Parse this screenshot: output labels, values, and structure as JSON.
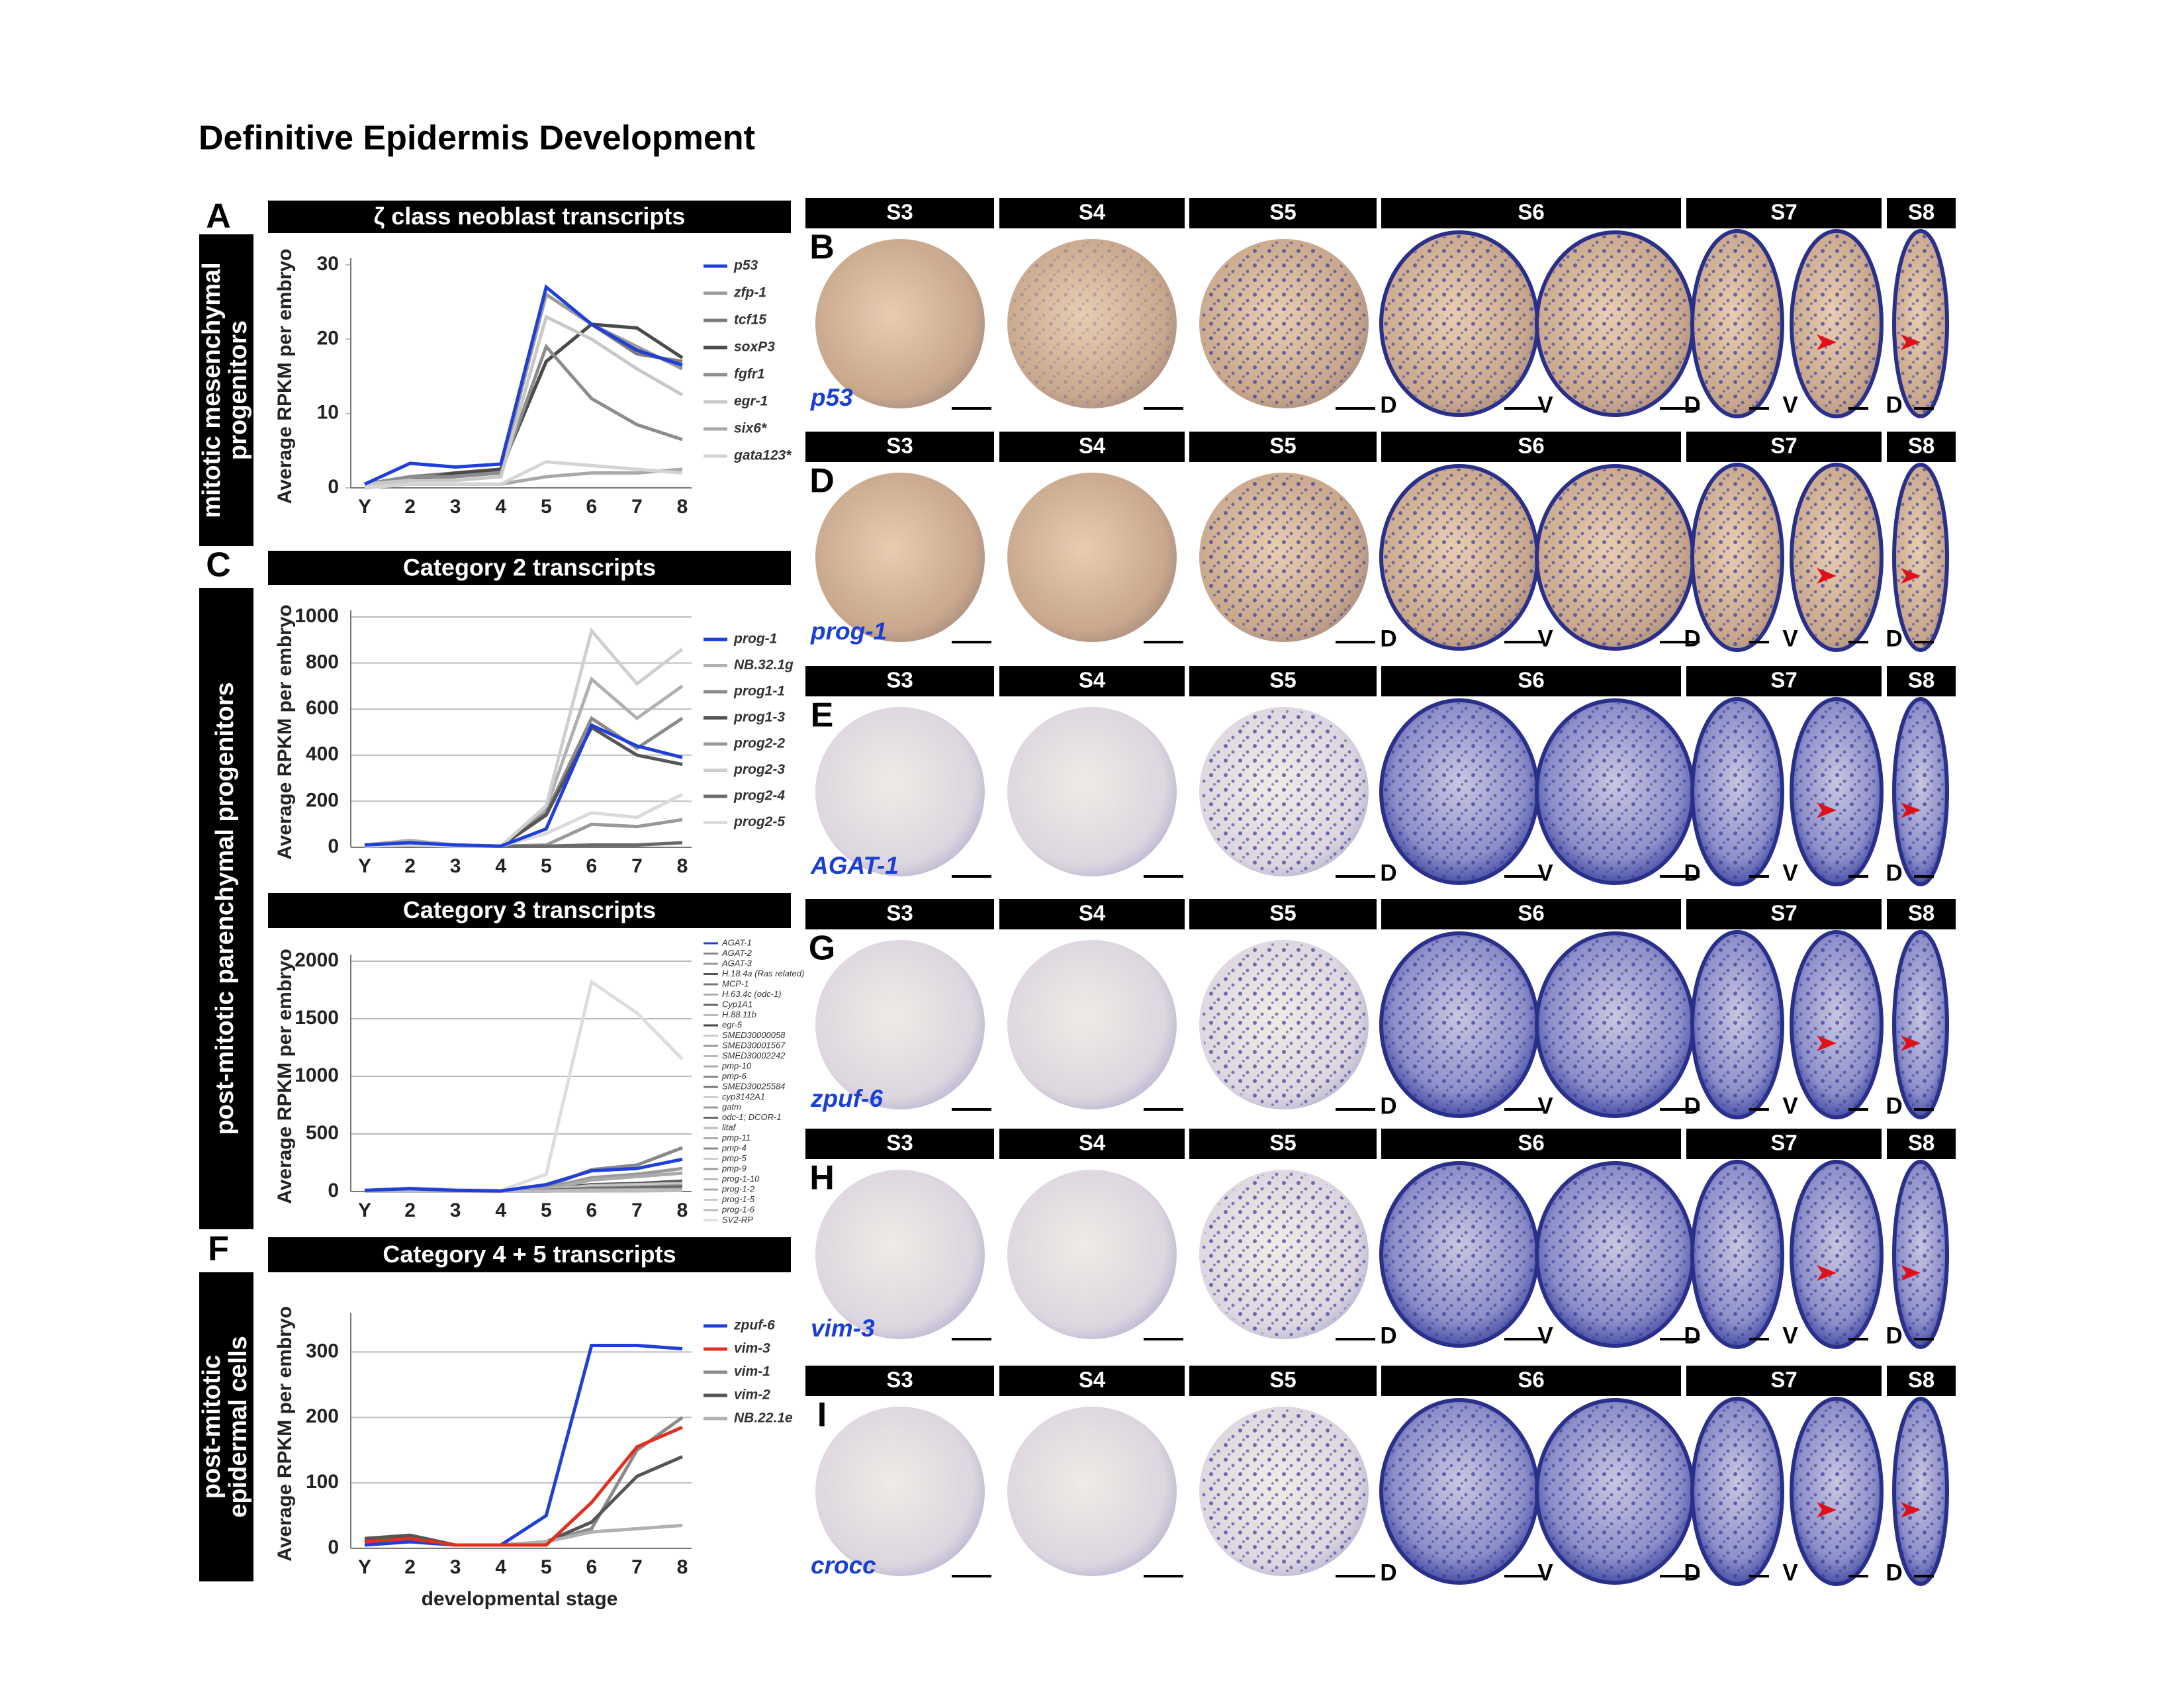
{
  "title": "Definitive Epidermis Development",
  "sections": [
    {
      "letter": "A",
      "label": [
        "mitotic mesenchymal",
        "progenitors"
      ]
    },
    {
      "letter": "C",
      "label": [
        "post-mitotic parenchymal progenitors"
      ]
    },
    {
      "letter": "F",
      "label": [
        "post-mitotic",
        "epidermal cells"
      ]
    }
  ],
  "chart_data": [
    {
      "type": "line",
      "title": "ζ class neoblast transcripts",
      "ylabel": "Average RPKM per embryo",
      "categories": [
        "Y",
        "2",
        "3",
        "4",
        "5",
        "6",
        "7",
        "8"
      ],
      "ylim": [
        0,
        30
      ],
      "yticks": [
        0,
        10,
        20,
        30
      ],
      "grid": false,
      "series": [
        {
          "name": "p53",
          "color": "#1f3fd8",
          "values": [
            0.5,
            3.3,
            2.8,
            3.2,
            27,
            22,
            18.5,
            16.5
          ]
        },
        {
          "name": "zfp-1",
          "color": "#9a9a9a",
          "values": [
            0.5,
            1,
            1.5,
            2.5,
            26,
            22,
            19,
            16
          ]
        },
        {
          "name": "tcf15",
          "color": "#7a7a7a",
          "values": [
            0.5,
            1.5,
            2,
            2.5,
            17,
            22,
            18,
            17
          ]
        },
        {
          "name": "soxP3",
          "color": "#4a4a4a",
          "values": [
            0.5,
            1,
            2,
            2.5,
            17,
            22,
            21.5,
            17.5
          ]
        },
        {
          "name": "fgfr1",
          "color": "#8c8c8c",
          "values": [
            0.5,
            1.5,
            1.5,
            2,
            19,
            12,
            8.5,
            6.5
          ]
        },
        {
          "name": "egr-1",
          "color": "#c8c8c8",
          "values": [
            0.5,
            1,
            1,
            1.5,
            23,
            20,
            16,
            12.5
          ]
        },
        {
          "name": "six6*",
          "color": "#a8a8a8",
          "values": [
            0,
            0.5,
            0.5,
            0.5,
            1.5,
            2,
            2,
            2.5
          ]
        },
        {
          "name": "gata123*",
          "color": "#d4d4d4",
          "values": [
            0,
            0.5,
            0.5,
            0.5,
            3.5,
            3,
            2.5,
            2
          ]
        }
      ]
    },
    {
      "type": "line",
      "title": "Category 2 transcripts",
      "ylabel": "Average RPKM per embryo",
      "categories": [
        "Y",
        "2",
        "3",
        "4",
        "5",
        "6",
        "7",
        "8"
      ],
      "ylim": [
        0,
        1000
      ],
      "yticks": [
        0,
        200,
        400,
        600,
        800,
        1000
      ],
      "grid": true,
      "series": [
        {
          "name": "prog-1",
          "color": "#1f3fd8",
          "values": [
            10,
            20,
            10,
            5,
            80,
            530,
            440,
            390
          ]
        },
        {
          "name": "NB.32.1g",
          "color": "#b0b0b0",
          "values": [
            10,
            30,
            10,
            5,
            170,
            730,
            560,
            700
          ]
        },
        {
          "name": "prog1-1",
          "color": "#8a8a8a",
          "values": [
            10,
            20,
            10,
            5,
            150,
            560,
            430,
            560
          ]
        },
        {
          "name": "prog1-3",
          "color": "#555555",
          "values": [
            10,
            15,
            10,
            5,
            140,
            520,
            400,
            360
          ]
        },
        {
          "name": "prog2-2",
          "color": "#999999",
          "values": [
            5,
            10,
            5,
            5,
            10,
            100,
            90,
            120
          ]
        },
        {
          "name": "prog2-3",
          "color": "#cfcfcf",
          "values": [
            10,
            20,
            10,
            5,
            180,
            940,
            710,
            860
          ]
        },
        {
          "name": "prog2-4",
          "color": "#6a6a6a",
          "values": [
            5,
            5,
            5,
            5,
            5,
            10,
            10,
            20
          ]
        },
        {
          "name": "prog2-5",
          "color": "#dadada",
          "values": [
            5,
            10,
            5,
            5,
            60,
            150,
            130,
            230
          ]
        }
      ]
    },
    {
      "type": "line",
      "title": "Category 3 transcripts",
      "ylabel": "Average RPKM per embryo",
      "categories": [
        "Y",
        "2",
        "3",
        "4",
        "5",
        "6",
        "7",
        "8"
      ],
      "ylim": [
        0,
        2000
      ],
      "yticks": [
        0,
        500,
        1000,
        1500,
        2000
      ],
      "grid": true,
      "series": [
        {
          "name": "AGAT-1",
          "color": "#1f3fd8",
          "values": [
            10,
            25,
            10,
            5,
            60,
            180,
            200,
            280
          ]
        },
        {
          "name": "AGAT-2",
          "color": "#888888",
          "values": [
            5,
            15,
            5,
            5,
            40,
            190,
            230,
            380
          ]
        },
        {
          "name": "AGAT-3",
          "color": "#999999",
          "values": [
            5,
            10,
            5,
            5,
            30,
            120,
            150,
            200
          ]
        },
        {
          "name": "H.18.4a (Ras related)",
          "color": "#555555",
          "values": [
            5,
            10,
            5,
            5,
            20,
            60,
            70,
            90
          ]
        },
        {
          "name": "MCP-1",
          "color": "#777777",
          "values": [
            5,
            10,
            5,
            5,
            15,
            40,
            50,
            60
          ]
        },
        {
          "name": "H.63.4c (odc-1)",
          "color": "#aaaaaa",
          "values": [
            5,
            10,
            5,
            5,
            20,
            100,
            130,
            160
          ]
        },
        {
          "name": "Cyp1A1",
          "color": "#666666",
          "values": [
            5,
            5,
            5,
            5,
            10,
            30,
            40,
            50
          ]
        },
        {
          "name": "H.88.11b",
          "color": "#bbbbbb",
          "values": [
            5,
            10,
            5,
            5,
            15,
            50,
            60,
            70
          ]
        },
        {
          "name": "egr-5",
          "color": "#444444",
          "values": [
            5,
            10,
            5,
            5,
            10,
            20,
            25,
            30
          ]
        },
        {
          "name": "SMED30000058",
          "color": "#cccccc",
          "values": [
            5,
            10,
            5,
            5,
            10,
            40,
            50,
            60
          ]
        },
        {
          "name": "SMED30001567",
          "color": "#999999",
          "values": [
            5,
            10,
            5,
            5,
            10,
            20,
            30,
            40
          ]
        },
        {
          "name": "SMED30002242",
          "color": "#bbbbbb",
          "values": [
            5,
            5,
            5,
            5,
            10,
            30,
            30,
            40
          ]
        },
        {
          "name": "pmp-10",
          "color": "#aaaaaa",
          "values": [
            5,
            5,
            5,
            5,
            10,
            20,
            20,
            30
          ]
        },
        {
          "name": "pmp-6",
          "color": "#888888",
          "values": [
            5,
            5,
            5,
            5,
            10,
            15,
            20,
            25
          ]
        },
        {
          "name": "SMED30025584",
          "color": "#777777",
          "values": [
            5,
            5,
            5,
            5,
            10,
            25,
            30,
            35
          ]
        },
        {
          "name": "cyp3142A1",
          "color": "#cccccc",
          "values": [
            5,
            5,
            5,
            5,
            5,
            10,
            15,
            20
          ]
        },
        {
          "name": "gatm",
          "color": "#999999",
          "values": [
            5,
            10,
            5,
            5,
            10,
            30,
            40,
            50
          ]
        },
        {
          "name": "odc-1; DCOR-1",
          "color": "#666666",
          "values": [
            5,
            10,
            5,
            5,
            10,
            25,
            30,
            40
          ]
        },
        {
          "name": "litaf",
          "color": "#bbbbbb",
          "values": [
            5,
            5,
            5,
            5,
            5,
            10,
            10,
            15
          ]
        },
        {
          "name": "pmp-11",
          "color": "#aaaaaa",
          "values": [
            5,
            5,
            5,
            5,
            5,
            10,
            10,
            15
          ]
        },
        {
          "name": "pmp-4",
          "color": "#888888",
          "values": [
            5,
            5,
            5,
            5,
            5,
            15,
            15,
            20
          ]
        },
        {
          "name": "pmp-5",
          "color": "#cccccc",
          "values": [
            5,
            5,
            5,
            5,
            5,
            10,
            10,
            10
          ]
        },
        {
          "name": "pmp-9",
          "color": "#999999",
          "values": [
            5,
            5,
            5,
            5,
            5,
            10,
            15,
            15
          ]
        },
        {
          "name": "prog-1-10",
          "color": "#bbbbbb",
          "values": [
            5,
            5,
            5,
            5,
            5,
            10,
            10,
            10
          ]
        },
        {
          "name": "prog-1-2",
          "color": "#aaaaaa",
          "values": [
            5,
            5,
            5,
            5,
            5,
            10,
            10,
            10
          ]
        },
        {
          "name": "prog-1-5",
          "color": "#cccccc",
          "values": [
            5,
            5,
            5,
            5,
            5,
            5,
            10,
            10
          ]
        },
        {
          "name": "prog-1-6",
          "color": "#bbbbbb",
          "values": [
            5,
            5,
            5,
            5,
            5,
            5,
            5,
            10
          ]
        },
        {
          "name": "SV2-RP",
          "color": "#dddddd",
          "values": [
            10,
            30,
            20,
            10,
            150,
            1820,
            1550,
            1150
          ]
        }
      ]
    },
    {
      "type": "line",
      "title": "Category 4 + 5 transcripts",
      "ylabel": "Average RPKM per embryo",
      "xlabel": "developmental stage",
      "categories": [
        "Y",
        "2",
        "3",
        "4",
        "5",
        "6",
        "7",
        "8"
      ],
      "ylim": [
        0,
        350
      ],
      "yticks": [
        0,
        100,
        200,
        300
      ],
      "grid": true,
      "series": [
        {
          "name": "zpuf-6",
          "color": "#1f3fd8",
          "values": [
            5,
            10,
            5,
            5,
            50,
            310,
            310,
            305
          ]
        },
        {
          "name": "vim-3",
          "color": "#e03020",
          "values": [
            10,
            15,
            5,
            5,
            5,
            70,
            155,
            185
          ]
        },
        {
          "name": "vim-1",
          "color": "#8a8a8a",
          "values": [
            10,
            20,
            5,
            5,
            10,
            30,
            150,
            200
          ]
        },
        {
          "name": "vim-2",
          "color": "#555555",
          "values": [
            15,
            20,
            5,
            5,
            10,
            40,
            110,
            140
          ]
        },
        {
          "name": "NB.22.1e",
          "color": "#b0b0b0",
          "values": [
            10,
            10,
            5,
            5,
            10,
            25,
            30,
            35
          ]
        }
      ]
    }
  ],
  "panels": [
    {
      "letter": "B",
      "gene": "p53",
      "stages": [
        "S3",
        "S4",
        "S5",
        "S6",
        "S7",
        "S8"
      ],
      "views": [
        "D",
        "V",
        "D",
        "V",
        "D"
      ]
    },
    {
      "letter": "D",
      "gene": "prog-1",
      "stages": [
        "S3",
        "S4",
        "S5",
        "S6",
        "S7",
        "S8"
      ],
      "views": [
        "D",
        "V",
        "D",
        "V",
        "D"
      ]
    },
    {
      "letter": "E",
      "gene": "AGAT-1",
      "stages": [
        "S3",
        "S4",
        "S5",
        "S6",
        "S7",
        "S8"
      ],
      "views": [
        "D",
        "V",
        "D",
        "V",
        "D"
      ]
    },
    {
      "letter": "G",
      "gene": "zpuf-6",
      "stages": [
        "S3",
        "S4",
        "S5",
        "S6",
        "S7",
        "S8"
      ],
      "views": [
        "D",
        "V",
        "D",
        "V",
        "D"
      ]
    },
    {
      "letter": "H",
      "gene": "vim-3",
      "stages": [
        "S3",
        "S4",
        "S5",
        "S6",
        "S7",
        "S8"
      ],
      "views": [
        "D",
        "V",
        "D",
        "V",
        "D"
      ]
    },
    {
      "letter": "I",
      "gene": "crocc",
      "stages": [
        "S3",
        "S4",
        "S5",
        "S6",
        "S7",
        "S8"
      ],
      "views": [
        "D",
        "V",
        "D",
        "V",
        "D"
      ]
    }
  ]
}
